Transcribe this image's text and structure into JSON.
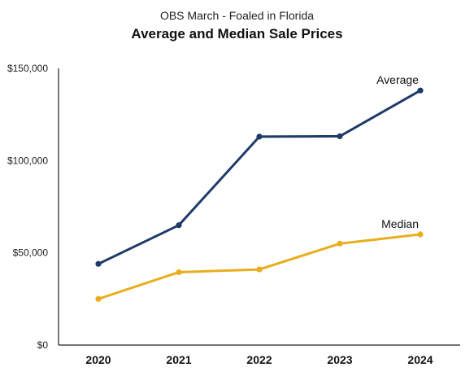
{
  "chart_data": {
    "type": "line",
    "subtitle": "OBS March - Foaled in Florida",
    "title": "Average and Median Sale Prices",
    "x": [
      "2020",
      "2021",
      "2022",
      "2023",
      "2024"
    ],
    "ylim": [
      0,
      150000
    ],
    "yticks": [
      0,
      50000,
      100000,
      150000
    ],
    "ytick_labels": [
      "$0",
      "$50,000",
      "$100,000",
      "$150,000"
    ],
    "grid": false,
    "series": [
      {
        "name": "Average",
        "color": "#1f3a68",
        "values": [
          44000,
          65000,
          113000,
          113200,
          138000
        ]
      },
      {
        "name": "Median",
        "color": "#e8ae1e",
        "values": [
          25000,
          39500,
          41000,
          55000,
          60000
        ]
      }
    ]
  }
}
